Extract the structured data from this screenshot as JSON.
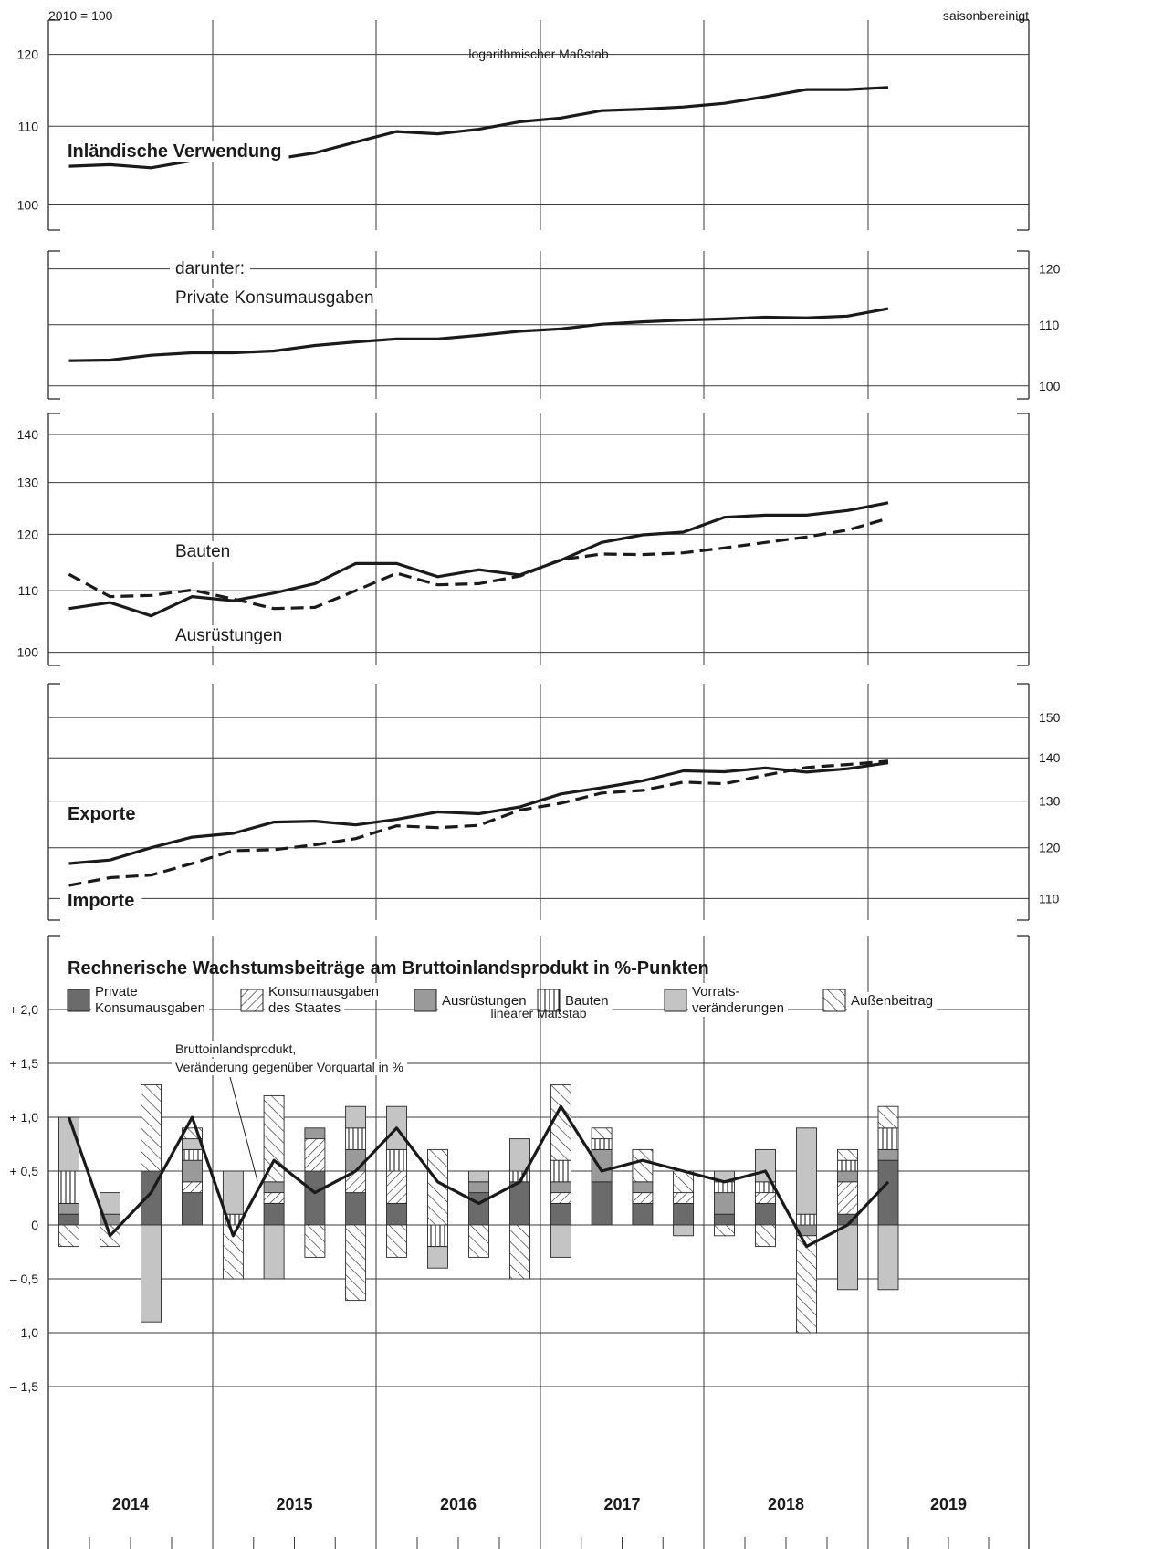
{
  "header": {
    "base": "2010 = 100",
    "adjustment": "saisonbereinigt",
    "log_note": "logarithmischer Maßstab",
    "lin_note": "linearer Maßstab"
  },
  "years": [
    "2014",
    "2015",
    "2016",
    "2017",
    "2018",
    "2019"
  ],
  "colors": {
    "private": "#6b6b6b",
    "equipment": "#9a9a9a",
    "inventory": "#c4c4c4",
    "line": "#1a1a1a"
  },
  "chart_data": [
    {
      "type": "line",
      "scale": "log",
      "ylim": [
        97,
        124
      ],
      "yticks": [
        100,
        110,
        120
      ],
      "yaxis_side": "left",
      "x": [
        "2014Q1",
        "2014Q2",
        "2014Q3",
        "2014Q4",
        "2015Q1",
        "2015Q2",
        "2015Q3",
        "2015Q4",
        "2016Q1",
        "2016Q2",
        "2016Q3",
        "2016Q4",
        "2017Q1",
        "2017Q2",
        "2017Q3",
        "2017Q4",
        "2018Q1",
        "2018Q2",
        "2018Q3",
        "2018Q4",
        "2019Q1"
      ],
      "series": [
        {
          "name": "Inländische Verwendung",
          "style": "solid",
          "values": [
            104.8,
            105.0,
            104.6,
            105.5,
            105.9,
            105.7,
            106.5,
            107.9,
            109.3,
            109.0,
            109.6,
            110.6,
            111.1,
            112.1,
            112.3,
            112.6,
            113.1,
            114.0,
            115.0,
            115.0,
            115.3
          ]
        }
      ]
    },
    {
      "type": "line",
      "scale": "log",
      "ylim": [
        98,
        122
      ],
      "yticks": [
        100,
        110,
        120
      ],
      "yaxis_side": "right",
      "x": [
        "2014Q1",
        "2014Q2",
        "2014Q3",
        "2014Q4",
        "2015Q1",
        "2015Q2",
        "2015Q3",
        "2015Q4",
        "2016Q1",
        "2016Q2",
        "2016Q3",
        "2016Q4",
        "2017Q1",
        "2017Q2",
        "2017Q3",
        "2017Q4",
        "2018Q1",
        "2018Q2",
        "2018Q3",
        "2018Q4",
        "2019Q1"
      ],
      "series": [
        {
          "name": "Private Konsumausgaben",
          "style": "solid",
          "values": [
            104.0,
            104.1,
            104.9,
            105.3,
            105.3,
            105.6,
            106.5,
            107.1,
            107.6,
            107.6,
            108.2,
            108.9,
            109.3,
            110.1,
            110.5,
            110.8,
            111.0,
            111.3,
            111.2,
            111.5,
            112.8
          ]
        }
      ]
    },
    {
      "type": "line",
      "scale": "log",
      "ylim": [
        98,
        143
      ],
      "yticks": [
        100,
        110,
        120,
        130,
        140
      ],
      "yaxis_side": "left",
      "x": [
        "2014Q1",
        "2014Q2",
        "2014Q3",
        "2014Q4",
        "2015Q1",
        "2015Q2",
        "2015Q3",
        "2015Q4",
        "2016Q1",
        "2016Q2",
        "2016Q3",
        "2016Q4",
        "2017Q1",
        "2017Q2",
        "2017Q3",
        "2017Q4",
        "2018Q1",
        "2018Q2",
        "2018Q3",
        "2018Q4",
        "2019Q1"
      ],
      "series": [
        {
          "name": "Bauten",
          "style": "solid",
          "values": [
            107.0,
            108.0,
            105.8,
            109.0,
            108.3,
            109.6,
            111.2,
            114.7,
            114.7,
            112.4,
            113.6,
            112.7,
            115.3,
            118.5,
            119.9,
            120.4,
            123.2,
            123.6,
            123.6,
            124.5,
            126.0
          ]
        },
        {
          "name": "Ausrüstungen",
          "style": "dashed",
          "values": [
            112.8,
            109.0,
            109.2,
            110.1,
            108.6,
            107.0,
            107.2,
            110.0,
            113.0,
            111.0,
            111.2,
            112.5,
            115.4,
            116.4,
            116.3,
            116.6,
            117.5,
            118.5,
            119.5,
            120.8,
            123.0
          ]
        }
      ]
    },
    {
      "type": "line",
      "scale": "log",
      "ylim": [
        106,
        157
      ],
      "yticks": [
        110,
        120,
        130,
        140,
        150
      ],
      "yaxis_side": "right",
      "x": [
        "2014Q1",
        "2014Q2",
        "2014Q3",
        "2014Q4",
        "2015Q1",
        "2015Q2",
        "2015Q3",
        "2015Q4",
        "2016Q1",
        "2016Q2",
        "2016Q3",
        "2016Q4",
        "2017Q1",
        "2017Q2",
        "2017Q3",
        "2017Q4",
        "2018Q1",
        "2018Q2",
        "2018Q3",
        "2018Q4",
        "2019Q1"
      ],
      "series": [
        {
          "name": "Exporte",
          "style": "solid",
          "values": [
            116.8,
            117.5,
            120.0,
            122.2,
            123.0,
            125.4,
            125.6,
            124.8,
            126.0,
            127.6,
            127.2,
            128.7,
            131.6,
            133.0,
            134.6,
            136.9,
            136.7,
            137.6,
            136.6,
            137.4,
            138.8
          ]
        },
        {
          "name": "Importe",
          "style": "dashed",
          "values": [
            112.5,
            114.0,
            114.5,
            116.8,
            119.4,
            119.6,
            120.6,
            121.9,
            124.6,
            124.2,
            124.7,
            128.0,
            129.5,
            131.8,
            132.4,
            134.3,
            133.9,
            135.9,
            137.7,
            138.4,
            139.2
          ]
        }
      ]
    },
    {
      "type": "bar",
      "stacked": true,
      "title": "Rechnerische Wachstumsbeiträge am Bruttoinlandsprodukt in %-Punkten",
      "ylim": [
        -1.5,
        2.0
      ],
      "yticks": [
        -1.5,
        -1.0,
        -0.5,
        0,
        0.5,
        1.0,
        1.5,
        2.0
      ],
      "ytick_labels": [
        "– 1,5",
        "– 1,0",
        "– 0,5",
        "0",
        "+ 0,5",
        "+ 1,0",
        "+ 1,5",
        "+ 2,0"
      ],
      "x": [
        "2014Q1",
        "2014Q2",
        "2014Q3",
        "2014Q4",
        "2015Q1",
        "2015Q2",
        "2015Q3",
        "2015Q4",
        "2016Q1",
        "2016Q2",
        "2016Q3",
        "2016Q4",
        "2017Q1",
        "2017Q2",
        "2017Q3",
        "2017Q4",
        "2018Q1",
        "2018Q2",
        "2018Q3",
        "2018Q4",
        "2019Q1"
      ],
      "series": [
        {
          "name": "Private Konsumausgaben",
          "values": [
            0.1,
            0.0,
            0.5,
            0.3,
            0.0,
            0.2,
            0.5,
            0.3,
            0.2,
            0.0,
            0.3,
            0.4,
            0.2,
            0.4,
            0.2,
            0.2,
            0.1,
            0.2,
            0.0,
            0.1,
            0.6
          ]
        },
        {
          "name": "Konsumausgaben des Staates",
          "values": [
            0.0,
            0.0,
            0.0,
            0.1,
            0.0,
            0.1,
            0.3,
            0.2,
            0.3,
            0.0,
            0.0,
            0.0,
            0.1,
            0.0,
            0.1,
            0.1,
            0.0,
            0.1,
            0.0,
            0.3,
            0.0
          ]
        },
        {
          "name": "Ausrüstungen",
          "values": [
            0.1,
            0.1,
            0.0,
            0.2,
            0.0,
            0.1,
            0.1,
            0.2,
            0.0,
            0.0,
            0.1,
            0.0,
            0.1,
            0.3,
            0.1,
            0.0,
            0.2,
            0.0,
            -0.1,
            0.1,
            0.1
          ]
        },
        {
          "name": "Bauten",
          "values": [
            0.3,
            0.0,
            0.0,
            0.1,
            0.1,
            0.0,
            0.0,
            0.2,
            0.2,
            -0.2,
            0.0,
            0.1,
            0.2,
            0.1,
            0.0,
            0.0,
            0.1,
            0.1,
            0.1,
            0.1,
            0.2
          ]
        },
        {
          "name": "Vorrats­veränderungen",
          "values": [
            0.5,
            0.2,
            -0.9,
            0.1,
            0.4,
            -0.5,
            0.0,
            0.2,
            0.4,
            -0.2,
            0.1,
            0.3,
            -0.3,
            0.0,
            0.0,
            -0.1,
            0.1,
            0.3,
            0.8,
            -0.6,
            -0.6
          ]
        },
        {
          "name": "Außenbeitrag",
          "values": [
            -0.2,
            -0.2,
            0.8,
            0.1,
            -0.5,
            0.8,
            -0.3,
            -0.7,
            -0.3,
            0.7,
            -0.3,
            -0.5,
            0.7,
            0.1,
            0.3,
            0.2,
            -0.1,
            -0.2,
            -0.9,
            0.1,
            0.2
          ]
        }
      ],
      "line_series": {
        "name": "Bruttoinlandsprodukt, Veränderung gegenüber Vorquartal in %",
        "values": [
          1.0,
          -0.1,
          0.3,
          1.0,
          -0.1,
          0.6,
          0.3,
          0.5,
          0.9,
          0.4,
          0.2,
          0.4,
          1.1,
          0.5,
          0.6,
          0.5,
          0.4,
          0.5,
          -0.2,
          0.0,
          0.4
        ]
      }
    }
  ],
  "labels": {
    "p1": "Inländische Verwendung",
    "p2a": "darunter:",
    "p2b": "Private Konsumausgaben",
    "p3a": "Bauten",
    "p3b": "Ausrüstungen",
    "p4a": "Exporte",
    "p4b": "Importe",
    "gdp1": "Bruttoinlandsprodukt,",
    "gdp2": "Veränderung gegenüber Vorquartal in %"
  },
  "legend": [
    {
      "key": "private",
      "lines": [
        "Private",
        "Konsumausgaben"
      ]
    },
    {
      "key": "state",
      "lines": [
        "Konsumausgaben",
        "des Staates"
      ]
    },
    {
      "key": "equipment",
      "lines": [
        "Ausrüstungen"
      ]
    },
    {
      "key": "construction",
      "lines": [
        "Bauten"
      ]
    },
    {
      "key": "inventory",
      "lines": [
        "Vorrats-",
        "veränderungen"
      ]
    },
    {
      "key": "external",
      "lines": [
        "Außenbeitrag"
      ]
    }
  ]
}
